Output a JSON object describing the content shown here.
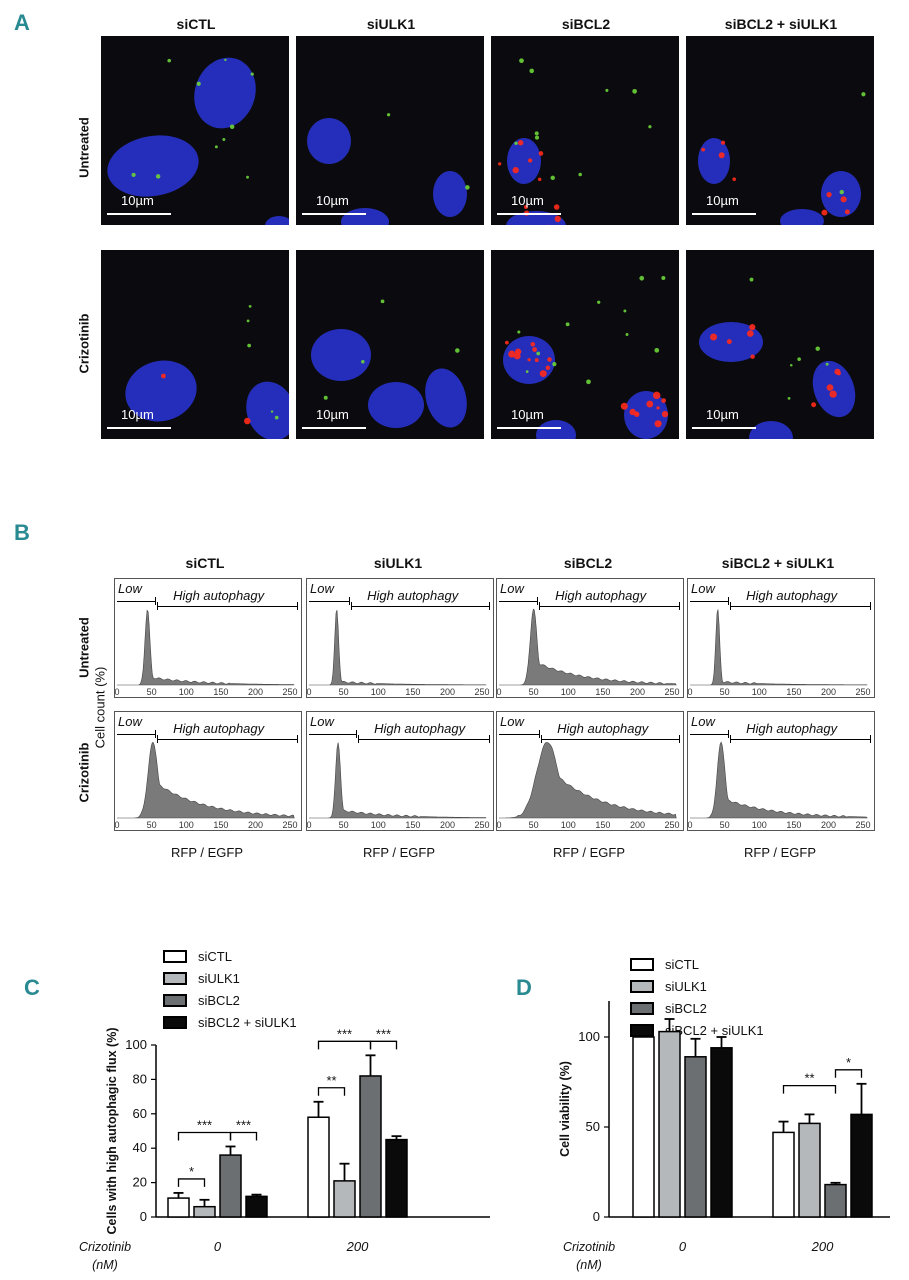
{
  "panels": {
    "a": {
      "letter": "A"
    },
    "b": {
      "letter": "B"
    },
    "c": {
      "letter": "C"
    },
    "d": {
      "letter": "D"
    }
  },
  "conditions": [
    "siCTL",
    "siULK1",
    "siBCL2",
    "siBCL2 + siULK1"
  ],
  "treatments": [
    "Untreated",
    "Crizotinib"
  ],
  "scale_bar": "10µm",
  "flow": {
    "ylabel": "Cell count (%)",
    "xlabel": "RFP / EGFP",
    "low_label": "Low",
    "high_label": "High autophagy",
    "x_ticks": [
      "0",
      "50",
      "100",
      "150",
      "200",
      "250"
    ]
  },
  "colors": {
    "dapi": "#2a35d8",
    "red_puncta": "#ff2a1a",
    "green_puncta": "#6cd43a",
    "panel_letter": "#2a8a92",
    "hist_fill": "#7a7a7a"
  },
  "chart_data": [
    {
      "type": "bar",
      "panel": "C",
      "xlabel": "Crizotinib (nM)",
      "x_axis_label_line1": "Crizotinib",
      "x_axis_label_line2": "(nM)",
      "ylabel": "Cells with high autophagic flux (%)",
      "categories": [
        "0",
        "200"
      ],
      "ylim": [
        0,
        100
      ],
      "yticks": [
        "0",
        "20",
        "40",
        "60",
        "80",
        "100"
      ],
      "series": [
        {
          "name": "siCTL",
          "color": "#ffffff",
          "values": [
            11,
            58
          ],
          "errors": [
            3,
            9
          ]
        },
        {
          "name": "siULK1",
          "color": "#b4b8bb",
          "values": [
            6,
            21
          ],
          "errors": [
            4,
            10
          ]
        },
        {
          "name": "siBCL2",
          "color": "#6c6f72",
          "values": [
            36,
            82
          ],
          "errors": [
            5,
            12
          ]
        },
        {
          "name": "siBCL2 + siULK1",
          "color": "#0a0a0a",
          "values": [
            12,
            45
          ],
          "errors": [
            1,
            2
          ]
        }
      ],
      "significance": [
        {
          "group": 0,
          "from": 0,
          "to": 1,
          "label": "*"
        },
        {
          "group": 0,
          "from": 0,
          "to": 2,
          "label": "***"
        },
        {
          "group": 0,
          "from": 2,
          "to": 3,
          "label": "***"
        },
        {
          "group": 1,
          "from": 0,
          "to": 1,
          "label": "**"
        },
        {
          "group": 1,
          "from": 0,
          "to": 2,
          "label": "***"
        },
        {
          "group": 1,
          "from": 2,
          "to": 3,
          "label": "***"
        }
      ]
    },
    {
      "type": "bar",
      "panel": "D",
      "xlabel": "Crizotinib (nM)",
      "x_axis_label_line1": "Crizotinib",
      "x_axis_label_line2": "(nM)",
      "ylabel": "Cell viability (%)",
      "categories": [
        "0",
        "200"
      ],
      "ylim": [
        0,
        120
      ],
      "yticks": [
        "0",
        "50",
        "100"
      ],
      "series": [
        {
          "name": "siCTL",
          "color": "#ffffff",
          "values": [
            100,
            47
          ],
          "errors": [
            0,
            6
          ]
        },
        {
          "name": "siULK1",
          "color": "#b4b8bb",
          "values": [
            103,
            52
          ],
          "errors": [
            7,
            5
          ]
        },
        {
          "name": "siBCL2",
          "color": "#6c6f72",
          "values": [
            89,
            18
          ],
          "errors": [
            10,
            1
          ]
        },
        {
          "name": "siBCL2 + siULK1",
          "color": "#0a0a0a",
          "values": [
            94,
            57
          ],
          "errors": [
            6,
            17
          ]
        }
      ],
      "significance": [
        {
          "group": 1,
          "from": 0,
          "to": 2,
          "label": "**"
        },
        {
          "group": 1,
          "from": 2,
          "to": 3,
          "label": "*"
        }
      ]
    }
  ]
}
